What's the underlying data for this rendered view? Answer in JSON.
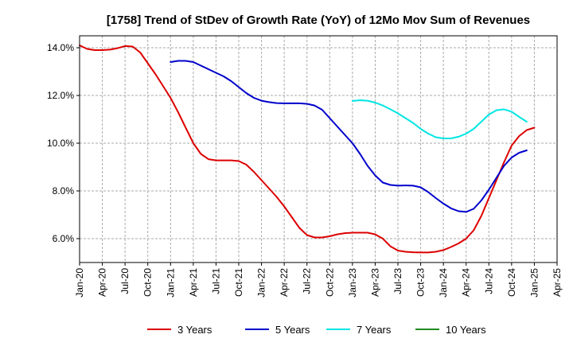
{
  "chart_data": {
    "type": "line",
    "title": "[1758]  Trend of StDev of Growth Rate (YoY) of 12Mo Mov Sum of Revenues",
    "xlabel": "",
    "ylabel": "",
    "ylim": [
      5.0,
      14.5
    ],
    "yticks": [
      6.0,
      8.0,
      10.0,
      12.0,
      14.0
    ],
    "ytick_labels": [
      "6.0%",
      "8.0%",
      "10.0%",
      "12.0%",
      "14.0%"
    ],
    "xticks": [
      "Jan-20",
      "Apr-20",
      "Jul-20",
      "Oct-20",
      "Jan-21",
      "Apr-21",
      "Jul-21",
      "Oct-21",
      "Jan-22",
      "Apr-22",
      "Jul-22",
      "Oct-22",
      "Jan-23",
      "Apr-23",
      "Jul-23",
      "Oct-23",
      "Jan-24",
      "Apr-24",
      "Jul-24",
      "Oct-24",
      "Jan-25",
      "Apr-25"
    ],
    "x_start": "2020-01",
    "grid": true,
    "legend_position": "bottom",
    "series": [
      {
        "name": "3 Years",
        "color": "#dd0000",
        "start_month_index": 0,
        "values": [
          14.1,
          13.95,
          13.9,
          13.9,
          13.92,
          13.98,
          14.07,
          14.05,
          13.8,
          13.35,
          12.9,
          12.4,
          11.9,
          11.3,
          10.65,
          10.0,
          9.55,
          9.33,
          9.28,
          9.28,
          9.28,
          9.25,
          9.1,
          8.8,
          8.45,
          8.1,
          7.75,
          7.35,
          6.9,
          6.45,
          6.15,
          6.05,
          6.05,
          6.1,
          6.18,
          6.23,
          6.25,
          6.25,
          6.25,
          6.18,
          6.0,
          5.68,
          5.5,
          5.45,
          5.43,
          5.42,
          5.42,
          5.45,
          5.52,
          5.65,
          5.8,
          6.0,
          6.35,
          6.95,
          7.7,
          8.45,
          9.2,
          9.9,
          10.3,
          10.55,
          10.65
        ]
      },
      {
        "name": "5 Years",
        "color": "#0000cc",
        "start_month_index": 12,
        "values": [
          13.4,
          13.45,
          13.45,
          13.4,
          13.25,
          13.1,
          12.95,
          12.8,
          12.6,
          12.35,
          12.1,
          11.9,
          11.78,
          11.72,
          11.68,
          11.67,
          11.67,
          11.67,
          11.65,
          11.58,
          11.4,
          11.05,
          10.7,
          10.35,
          10.0,
          9.55,
          9.05,
          8.65,
          8.35,
          8.25,
          8.22,
          8.23,
          8.22,
          8.15,
          7.95,
          7.7,
          7.47,
          7.27,
          7.15,
          7.12,
          7.25,
          7.6,
          8.05,
          8.55,
          9.05,
          9.4,
          9.6,
          9.7
        ]
      },
      {
        "name": "7 Years",
        "color": "#00e5e5",
        "start_month_index": 36,
        "values": [
          11.77,
          11.8,
          11.78,
          11.7,
          11.58,
          11.42,
          11.25,
          11.05,
          10.85,
          10.6,
          10.4,
          10.25,
          10.2,
          10.2,
          10.27,
          10.4,
          10.6,
          10.9,
          11.2,
          11.38,
          11.42,
          11.32,
          11.1,
          10.9
        ]
      },
      {
        "name": "10 Years",
        "color": "#228b22",
        "start_month_index": 0,
        "values": []
      }
    ]
  }
}
